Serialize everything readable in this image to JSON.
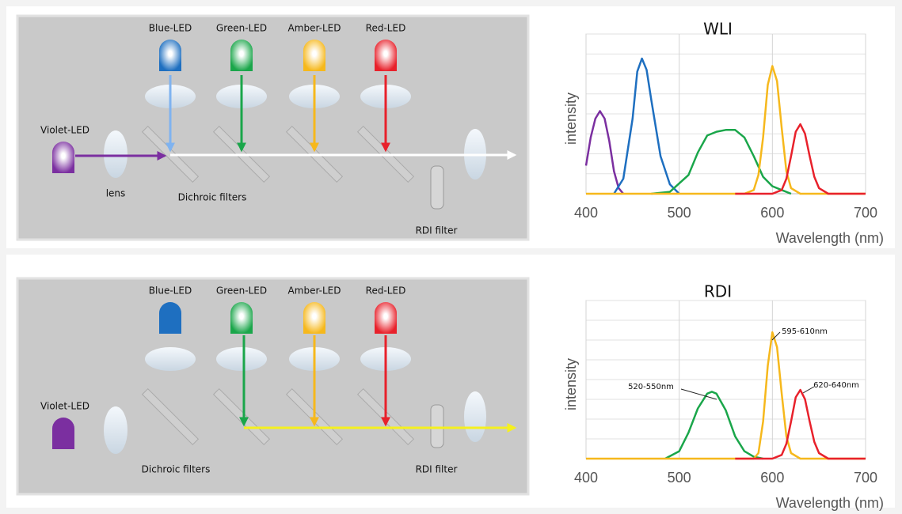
{
  "diagrams": [
    {
      "leds": [
        "Blue-LED",
        "Green-LED",
        "Amber-LED",
        "Red-LED",
        "Violet-LED"
      ],
      "lens": "lens",
      "filters": "Dichroic filters",
      "rdi": "RDI filter"
    },
    {
      "leds": [
        "Blue-LED",
        "Green-LED",
        "Amber-LED",
        "Red-LED",
        "Violet-LED"
      ],
      "filters": "Dichroic filters",
      "rdi": "RDI filter"
    }
  ],
  "chart_data": [
    {
      "type": "line",
      "title": "WLI",
      "ylabel": "intensity",
      "xlabel": "Wavelength (nm)",
      "xlim": [
        400,
        700
      ],
      "xticks": [
        400,
        500,
        600,
        700
      ],
      "ylim": [
        0,
        8
      ],
      "grid": true,
      "series": [
        {
          "color": "#7b2fa0",
          "x": [
            400,
            405,
            410,
            415,
            420,
            425,
            430,
            435,
            440
          ],
          "values": [
            1.5,
            3.0,
            4.0,
            4.4,
            4.0,
            2.8,
            1.2,
            0.3,
            0
          ]
        },
        {
          "color": "#1e6fc0",
          "x": [
            430,
            440,
            450,
            455,
            460,
            465,
            470,
            480,
            490,
            500
          ],
          "values": [
            0,
            0.8,
            4,
            6.5,
            7.2,
            6.6,
            5,
            2,
            0.5,
            0
          ]
        },
        {
          "color": "#1aa64a",
          "x": [
            470,
            490,
            510,
            520,
            530,
            540,
            550,
            560,
            570,
            580,
            590,
            600,
            610,
            620
          ],
          "values": [
            0,
            0.1,
            1,
            2.2,
            3.1,
            3.3,
            3.4,
            3.4,
            3.0,
            2.0,
            0.9,
            0.4,
            0.2,
            0
          ]
        },
        {
          "color": "#f6b81c",
          "x": [
            400,
            570,
            580,
            585,
            590,
            595,
            600,
            605,
            610,
            615,
            620,
            630,
            700
          ],
          "values": [
            0,
            0,
            0.2,
            1,
            3,
            5.8,
            6.8,
            6,
            3.5,
            1.2,
            0.3,
            0,
            0
          ]
        },
        {
          "color": "#e8212b",
          "x": [
            560,
            600,
            610,
            615,
            620,
            625,
            630,
            635,
            640,
            645,
            650,
            660,
            700
          ],
          "values": [
            0,
            0,
            0.2,
            0.8,
            2,
            3.3,
            3.7,
            3.2,
            2,
            0.9,
            0.3,
            0,
            0
          ]
        }
      ]
    },
    {
      "type": "line",
      "title": "RDI",
      "ylabel": "intensity",
      "xlabel": "Wavelength (nm)",
      "xlim": [
        400,
        700
      ],
      "xticks": [
        400,
        500,
        600,
        700
      ],
      "ylim": [
        0,
        8
      ],
      "grid": true,
      "annotations": [
        "520-550nm",
        "595-610nm",
        "620-640nm"
      ],
      "series": [
        {
          "color": "#1aa64a",
          "x": [
            485,
            500,
            510,
            520,
            530,
            535,
            540,
            550,
            560,
            570,
            580,
            590
          ],
          "values": [
            0,
            0.4,
            1.4,
            2.7,
            3.5,
            3.6,
            3.5,
            2.6,
            1.2,
            0.4,
            0.1,
            0
          ]
        },
        {
          "color": "#f6b81c",
          "x": [
            400,
            580,
            585,
            590,
            595,
            600,
            605,
            610,
            615,
            620,
            630,
            700
          ],
          "values": [
            0,
            0,
            0.3,
            2,
            5,
            6.8,
            6,
            3.5,
            1.2,
            0.3,
            0,
            0
          ]
        },
        {
          "color": "#e8212b",
          "x": [
            560,
            600,
            610,
            615,
            620,
            625,
            630,
            635,
            640,
            645,
            650,
            660,
            700
          ],
          "values": [
            0,
            0,
            0.2,
            0.8,
            2,
            3.3,
            3.7,
            3.2,
            2,
            0.9,
            0.3,
            0,
            0
          ]
        }
      ]
    }
  ]
}
